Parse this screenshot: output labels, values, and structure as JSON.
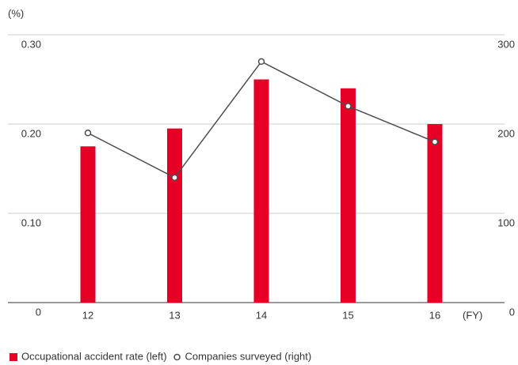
{
  "chart_data": {
    "type": "bar",
    "y_label": "(%)",
    "x_label": "(FY)",
    "categories": [
      "12",
      "13",
      "14",
      "15",
      "16"
    ],
    "series": [
      {
        "name": "Occupational accident rate (left)",
        "type": "bar",
        "color": "#e60026",
        "values": [
          0.175,
          0.195,
          0.25,
          0.24,
          0.2
        ]
      },
      {
        "name": "Companies surveyed (right)",
        "type": "line",
        "axis": "y2",
        "color": "#4d4d4d",
        "values": [
          190,
          140,
          270,
          220,
          180
        ]
      }
    ],
    "ylim": [
      0,
      0.3
    ],
    "yticks": [
      0,
      {
        "value": 0.1,
        "label": "0.10"
      },
      {
        "value": 0.2,
        "label": "0.20"
      },
      {
        "value": 0.3,
        "label": "0.30"
      }
    ],
    "y2lim": [
      0,
      300
    ],
    "y2ticks": [
      0,
      100,
      200,
      300
    ],
    "grid": true
  }
}
